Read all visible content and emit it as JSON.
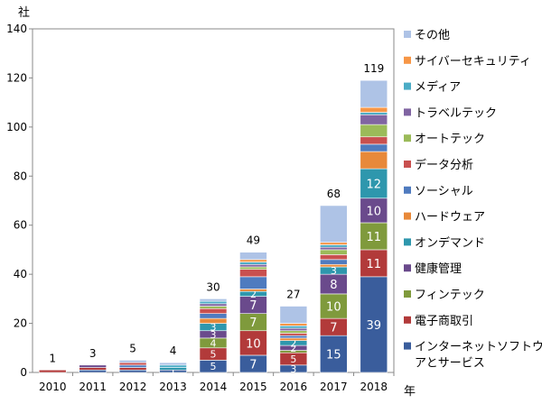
{
  "chart_data": {
    "type": "bar",
    "stacked": true,
    "y_unit_label": "社",
    "x_unit_label": "年",
    "categories": [
      "2010",
      "2011",
      "2012",
      "2013",
      "2014",
      "2015",
      "2016",
      "2017",
      "2018"
    ],
    "ylim": [
      0,
      140
    ],
    "yticks": [
      0,
      20,
      40,
      60,
      80,
      100,
      120,
      140
    ],
    "grid": false,
    "legend_position": "right",
    "totals": [
      1,
      3,
      5,
      4,
      30,
      49,
      27,
      68,
      119
    ],
    "series": [
      {
        "name": "インターネットソフトウェアとサービス",
        "color": "#3a5d9c",
        "values": [
          0,
          1,
          1,
          1,
          5,
          7,
          3,
          15,
          39
        ],
        "labels": [
          null,
          null,
          null,
          "1",
          "5",
          "7",
          "3",
          "15",
          "39"
        ]
      },
      {
        "name": "電子商取引",
        "color": "#b23a3a",
        "values": [
          1,
          1,
          1,
          0,
          5,
          10,
          5,
          7,
          11
        ],
        "labels": [
          null,
          null,
          null,
          null,
          "5",
          "10",
          "5",
          "7",
          "11"
        ]
      },
      {
        "name": "フィンテック",
        "color": "#7f9a3c",
        "values": [
          0,
          0,
          0,
          0,
          4,
          7,
          1,
          10,
          11
        ],
        "labels": [
          null,
          null,
          null,
          null,
          "4",
          "7",
          null,
          "10",
          "11"
        ]
      },
      {
        "name": "健康管理",
        "color": "#6a4a8c",
        "values": [
          0,
          1,
          0,
          0,
          3,
          7,
          2,
          8,
          10
        ],
        "labels": [
          null,
          null,
          null,
          null,
          "3",
          "7",
          "2",
          "8",
          "10"
        ]
      },
      {
        "name": "オンデマンド",
        "color": "#2e97ad",
        "values": [
          0,
          0,
          0,
          1,
          3,
          2,
          2,
          3,
          12
        ],
        "labels": [
          null,
          null,
          null,
          null,
          "3",
          "2",
          "2",
          "3",
          "12"
        ]
      },
      {
        "name": "ハードウェア",
        "color": "#e8893a",
        "values": [
          0,
          0,
          0,
          0,
          2,
          1,
          1,
          1,
          7
        ],
        "labels": [
          null,
          null,
          null,
          null,
          null,
          null,
          null,
          null,
          null
        ]
      },
      {
        "name": "ソーシャル",
        "color": "#4f7bbf",
        "values": [
          0,
          0,
          1,
          0,
          2,
          5,
          1,
          2,
          3
        ],
        "labels": [
          null,
          null,
          null,
          null,
          null,
          null,
          null,
          null,
          null
        ]
      },
      {
        "name": "データ分析",
        "color": "#c9504f",
        "values": [
          0,
          0,
          1,
          0,
          2,
          3,
          1,
          2,
          3
        ],
        "labels": [
          null,
          null,
          null,
          null,
          null,
          null,
          null,
          null,
          null
        ]
      },
      {
        "name": "オートテック",
        "color": "#9bbb59",
        "values": [
          0,
          0,
          0,
          0,
          1,
          1,
          1,
          2,
          5
        ],
        "labels": [
          null,
          null,
          null,
          null,
          null,
          null,
          null,
          null,
          null
        ]
      },
      {
        "name": "トラベルテック",
        "color": "#8064a2",
        "values": [
          0,
          0,
          0,
          0,
          1,
          1,
          1,
          1,
          4
        ],
        "labels": [
          null,
          null,
          null,
          null,
          null,
          null,
          null,
          null,
          null
        ]
      },
      {
        "name": "メディア",
        "color": "#4bacc6",
        "values": [
          0,
          0,
          0,
          1,
          1,
          1,
          1,
          1,
          1
        ],
        "labels": [
          null,
          null,
          null,
          null,
          null,
          null,
          null,
          null,
          null
        ]
      },
      {
        "name": "サイバーセキュリティ",
        "color": "#f79646",
        "values": [
          0,
          0,
          0,
          0,
          0,
          1,
          1,
          1,
          2
        ],
        "labels": [
          null,
          null,
          null,
          null,
          null,
          null,
          null,
          null,
          null
        ]
      },
      {
        "name": "その他",
        "color": "#aec3e6",
        "values": [
          0,
          0,
          1,
          1,
          1,
          3,
          7,
          15,
          11
        ],
        "labels": [
          null,
          null,
          null,
          null,
          null,
          null,
          null,
          null,
          null
        ]
      }
    ]
  }
}
